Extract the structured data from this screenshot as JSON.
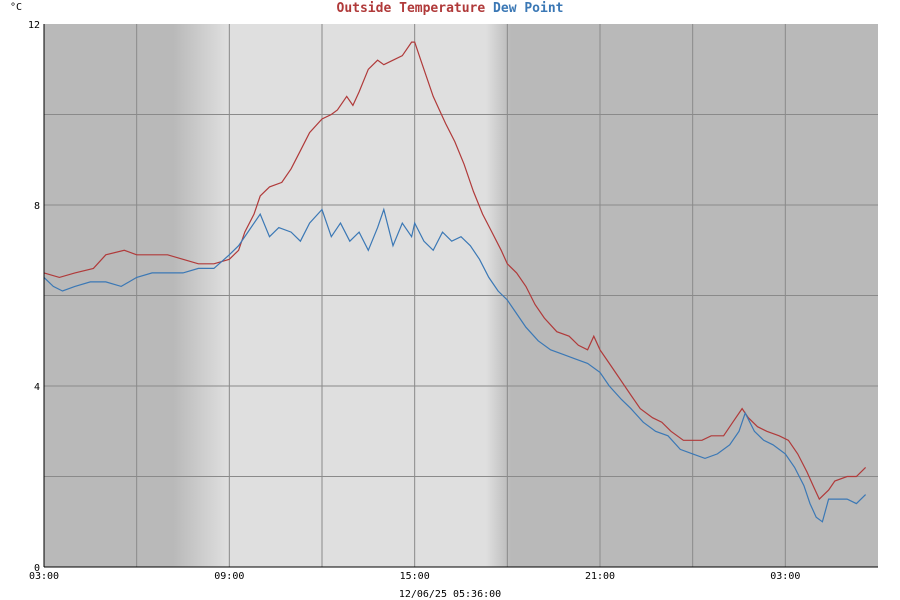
{
  "chart_data": {
    "type": "line",
    "title_parts": [
      {
        "text": "Outside Temperature",
        "color": "#b03a3a"
      },
      {
        "text": "Dew Point",
        "color": "#3b78b5"
      }
    ],
    "y_unit": "°C",
    "footer": "12/06/25 05:36:00",
    "x_range_hours": [
      3,
      30
    ],
    "ylim": [
      0,
      12
    ],
    "y_ticks": [
      {
        "value": 0,
        "label": "0"
      },
      {
        "value": 4,
        "label": "4"
      },
      {
        "value": 8,
        "label": "8"
      },
      {
        "value": 12,
        "label": "12"
      }
    ],
    "x_ticks": [
      {
        "hour": 3,
        "label": "03:00"
      },
      {
        "hour": 9,
        "label": "09:00"
      },
      {
        "hour": 15,
        "label": "15:00"
      },
      {
        "hour": 21,
        "label": "21:00"
      },
      {
        "hour": 27,
        "label": "03:00"
      }
    ],
    "grid": true,
    "background": {
      "night": "#b9b9b9",
      "day": "#dfdfdf"
    },
    "series": [
      {
        "name": "Outside Temperature",
        "color": "#b03a3a",
        "points": [
          [
            3.0,
            6.5
          ],
          [
            3.5,
            6.4
          ],
          [
            4.0,
            6.5
          ],
          [
            4.6,
            6.6
          ],
          [
            5.0,
            6.9
          ],
          [
            5.6,
            7.0
          ],
          [
            6.0,
            6.9
          ],
          [
            7.0,
            6.9
          ],
          [
            7.5,
            6.8
          ],
          [
            8.0,
            6.7
          ],
          [
            8.5,
            6.7
          ],
          [
            9.0,
            6.8
          ],
          [
            9.3,
            7.0
          ],
          [
            9.5,
            7.4
          ],
          [
            9.8,
            7.8
          ],
          [
            10.0,
            8.2
          ],
          [
            10.3,
            8.4
          ],
          [
            10.7,
            8.5
          ],
          [
            11.0,
            8.8
          ],
          [
            11.3,
            9.2
          ],
          [
            11.6,
            9.6
          ],
          [
            12.0,
            9.9
          ],
          [
            12.3,
            10.0
          ],
          [
            12.5,
            10.1
          ],
          [
            12.8,
            10.4
          ],
          [
            13.0,
            10.2
          ],
          [
            13.2,
            10.5
          ],
          [
            13.5,
            11.0
          ],
          [
            13.8,
            11.2
          ],
          [
            14.0,
            11.1
          ],
          [
            14.3,
            11.2
          ],
          [
            14.6,
            11.3
          ],
          [
            14.9,
            11.6
          ],
          [
            15.0,
            11.6
          ],
          [
            15.2,
            11.2
          ],
          [
            15.4,
            10.8
          ],
          [
            15.6,
            10.4
          ],
          [
            15.8,
            10.1
          ],
          [
            16.0,
            9.8
          ],
          [
            16.3,
            9.4
          ],
          [
            16.6,
            8.9
          ],
          [
            16.9,
            8.3
          ],
          [
            17.2,
            7.8
          ],
          [
            17.5,
            7.4
          ],
          [
            17.8,
            7.0
          ],
          [
            18.0,
            6.7
          ],
          [
            18.3,
            6.5
          ],
          [
            18.6,
            6.2
          ],
          [
            18.9,
            5.8
          ],
          [
            19.2,
            5.5
          ],
          [
            19.6,
            5.2
          ],
          [
            20.0,
            5.1
          ],
          [
            20.3,
            4.9
          ],
          [
            20.6,
            4.8
          ],
          [
            20.8,
            5.1
          ],
          [
            21.0,
            4.8
          ],
          [
            21.3,
            4.5
          ],
          [
            21.6,
            4.2
          ],
          [
            22.0,
            3.8
          ],
          [
            22.3,
            3.5
          ],
          [
            22.7,
            3.3
          ],
          [
            23.0,
            3.2
          ],
          [
            23.3,
            3.0
          ],
          [
            23.7,
            2.8
          ],
          [
            24.0,
            2.8
          ],
          [
            24.3,
            2.8
          ],
          [
            24.6,
            2.9
          ],
          [
            25.0,
            2.9
          ],
          [
            25.3,
            3.2
          ],
          [
            25.6,
            3.5
          ],
          [
            25.8,
            3.3
          ],
          [
            26.1,
            3.1
          ],
          [
            26.4,
            3.0
          ],
          [
            26.8,
            2.9
          ],
          [
            27.1,
            2.8
          ],
          [
            27.4,
            2.5
          ],
          [
            27.7,
            2.1
          ],
          [
            27.9,
            1.8
          ],
          [
            28.1,
            1.5
          ],
          [
            28.4,
            1.7
          ],
          [
            28.6,
            1.9
          ],
          [
            29.0,
            2.0
          ],
          [
            29.3,
            2.0
          ],
          [
            29.6,
            2.2
          ]
        ]
      },
      {
        "name": "Dew Point",
        "color": "#3b78b5",
        "points": [
          [
            3.0,
            6.4
          ],
          [
            3.3,
            6.2
          ],
          [
            3.6,
            6.1
          ],
          [
            4.0,
            6.2
          ],
          [
            4.5,
            6.3
          ],
          [
            5.0,
            6.3
          ],
          [
            5.5,
            6.2
          ],
          [
            6.0,
            6.4
          ],
          [
            6.5,
            6.5
          ],
          [
            7.0,
            6.5
          ],
          [
            7.5,
            6.5
          ],
          [
            8.0,
            6.6
          ],
          [
            8.5,
            6.6
          ],
          [
            9.0,
            6.9
          ],
          [
            9.3,
            7.1
          ],
          [
            9.6,
            7.4
          ],
          [
            10.0,
            7.8
          ],
          [
            10.3,
            7.3
          ],
          [
            10.6,
            7.5
          ],
          [
            11.0,
            7.4
          ],
          [
            11.3,
            7.2
          ],
          [
            11.6,
            7.6
          ],
          [
            12.0,
            7.9
          ],
          [
            12.3,
            7.3
          ],
          [
            12.6,
            7.6
          ],
          [
            12.9,
            7.2
          ],
          [
            13.2,
            7.4
          ],
          [
            13.5,
            7.0
          ],
          [
            13.8,
            7.5
          ],
          [
            14.0,
            7.9
          ],
          [
            14.3,
            7.1
          ],
          [
            14.6,
            7.6
          ],
          [
            14.9,
            7.3
          ],
          [
            15.0,
            7.6
          ],
          [
            15.3,
            7.2
          ],
          [
            15.6,
            7.0
          ],
          [
            15.9,
            7.4
          ],
          [
            16.2,
            7.2
          ],
          [
            16.5,
            7.3
          ],
          [
            16.8,
            7.1
          ],
          [
            17.1,
            6.8
          ],
          [
            17.4,
            6.4
          ],
          [
            17.7,
            6.1
          ],
          [
            18.0,
            5.9
          ],
          [
            18.3,
            5.6
          ],
          [
            18.6,
            5.3
          ],
          [
            19.0,
            5.0
          ],
          [
            19.4,
            4.8
          ],
          [
            19.8,
            4.7
          ],
          [
            20.2,
            4.6
          ],
          [
            20.6,
            4.5
          ],
          [
            21.0,
            4.3
          ],
          [
            21.3,
            4.0
          ],
          [
            21.7,
            3.7
          ],
          [
            22.0,
            3.5
          ],
          [
            22.4,
            3.2
          ],
          [
            22.8,
            3.0
          ],
          [
            23.2,
            2.9
          ],
          [
            23.6,
            2.6
          ],
          [
            24.0,
            2.5
          ],
          [
            24.4,
            2.4
          ],
          [
            24.8,
            2.5
          ],
          [
            25.2,
            2.7
          ],
          [
            25.5,
            3.0
          ],
          [
            25.7,
            3.4
          ],
          [
            26.0,
            3.0
          ],
          [
            26.3,
            2.8
          ],
          [
            26.6,
            2.7
          ],
          [
            27.0,
            2.5
          ],
          [
            27.3,
            2.2
          ],
          [
            27.6,
            1.8
          ],
          [
            27.8,
            1.4
          ],
          [
            28.0,
            1.1
          ],
          [
            28.2,
            1.0
          ],
          [
            28.4,
            1.5
          ],
          [
            28.7,
            1.5
          ],
          [
            29.0,
            1.5
          ],
          [
            29.3,
            1.4
          ],
          [
            29.6,
            1.6
          ]
        ]
      }
    ]
  }
}
